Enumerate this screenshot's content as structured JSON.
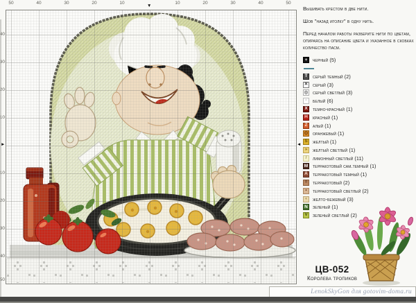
{
  "chart": {
    "rulers": {
      "top_left": [
        "50",
        "40",
        "30",
        "20",
        "10"
      ],
      "top_right": [
        "10",
        "20",
        "30",
        "40",
        "50"
      ],
      "left_up": [
        "40",
        "30",
        "20",
        "10"
      ],
      "left_down": [
        "10",
        "20",
        "30",
        "40",
        "50"
      ]
    },
    "center_markers": {
      "top": "▼",
      "left": "►",
      "right": "◄"
    }
  },
  "instructions": [
    "Вышивать крестом в две нити.",
    "Шов \"назад иголку\" в одну нить.",
    "Перед началом работы разберите нити по цветам, опираясь на описание цвета и указанное в скобках количество пасм."
  ],
  "legend": {
    "items": [
      {
        "type": "color",
        "label": "черный",
        "count": 5,
        "color": "#161616",
        "symbol": "+",
        "symbol_color": "#ffffff",
        "border": "#000000"
      },
      {
        "type": "line",
        "label": "",
        "count": null,
        "color": "#4e8796"
      },
      {
        "type": "color",
        "label": "серый темный",
        "count": 2,
        "color": "#4f4f4f",
        "symbol": "Т",
        "symbol_color": "#ffffff",
        "border": "#222222"
      },
      {
        "type": "color",
        "label": "серый",
        "count": 3,
        "color": "#ffffff",
        "symbol": "✕",
        "symbol_color": "#333333",
        "border": "#777777"
      },
      {
        "type": "color",
        "label": "серый светлый",
        "count": 3,
        "color": "#ffffff",
        "symbol": "◎",
        "symbol_color": "#666666",
        "border": "#aaaaaa"
      },
      {
        "type": "color",
        "label": "белый",
        "count": 6,
        "color": "#ffffff",
        "symbol": "·",
        "symbol_color": "#555555",
        "border": "#bbbbbb"
      },
      {
        "type": "color",
        "label": "темно-красный",
        "count": 1,
        "color": "#7e1a12",
        "symbol": "Х",
        "symbol_color": "#ffffff",
        "border": "#4a0c06"
      },
      {
        "type": "color",
        "label": "красный",
        "count": 1,
        "color": "#b5241a",
        "symbol": "Н",
        "symbol_color": "#ffd9d0",
        "border": "#6e0f08"
      },
      {
        "type": "color",
        "label": "алый",
        "count": 1,
        "color": "#d0592a",
        "symbol": "Z",
        "symbol_color": "#ffe8d8",
        "border": "#8e3a14"
      },
      {
        "type": "color",
        "label": "оранжевый",
        "count": 1,
        "color": "#d8892a",
        "symbol": "O",
        "symbol_color": "#5a3408",
        "border": "#955d14"
      },
      {
        "type": "color",
        "label": "желтый",
        "count": 1,
        "color": "#ddb22d",
        "symbol": "S",
        "symbol_color": "#6e5208",
        "border": "#9a7a14"
      },
      {
        "type": "color",
        "label": "желтый светлый",
        "count": 1,
        "color": "#ecd47e",
        "symbol": "»",
        "symbol_color": "#8a6a14",
        "border": "#bca050"
      },
      {
        "type": "color",
        "label": "лимонный светлый",
        "count": 11,
        "color": "#f4f1cf",
        "symbol": "/",
        "symbol_color": "#a09a58",
        "border": "#cfc990"
      },
      {
        "type": "color",
        "label": "терракотовый сам.темный",
        "count": 1,
        "color": "#4e2a1e",
        "symbol": "М",
        "symbol_color": "#ffffff",
        "border": "#2e160e"
      },
      {
        "type": "color",
        "label": "терракотовый темный",
        "count": 1,
        "color": "#8c4a34",
        "symbol": "А",
        "symbol_color": "#ffe2d2",
        "border": "#5c2a18"
      },
      {
        "type": "color",
        "label": "терракотовый",
        "count": 2,
        "color": "#bc8a64",
        "symbol": "=",
        "symbol_color": "#50281a",
        "border": "#8a5c3a"
      },
      {
        "type": "color",
        "label": "терракотовый светлый",
        "count": 2,
        "color": "#dab795",
        "symbol": "•",
        "symbol_color": "#6e4228",
        "border": "#ab8562"
      },
      {
        "type": "color",
        "label": "желто-бежевый",
        "count": 3,
        "color": "#eadaae",
        "symbol": "‹",
        "symbol_color": "#8a6a30",
        "border": "#bda578"
      },
      {
        "type": "color",
        "label": "зеленый",
        "count": 1,
        "color": "#44702c",
        "symbol": "N",
        "symbol_color": "#ffffff",
        "border": "#2a4a18"
      },
      {
        "type": "color",
        "label": "зеленый светлый",
        "count": 2,
        "color": "#b9c448",
        "symbol": "V",
        "symbol_color": "#3e4a0e",
        "border": "#7e8a22"
      }
    ]
  },
  "title": {
    "code": "ЦВ-052",
    "name": "Королева тропиков"
  },
  "watermark": "LenokSkyGon для gotovim-doma.ru"
}
